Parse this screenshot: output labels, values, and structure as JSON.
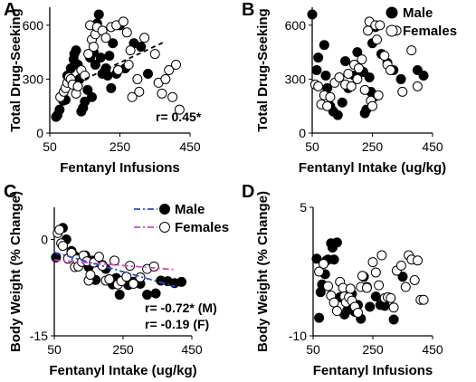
{
  "figure": {
    "panel_labels": [
      "A",
      "B",
      "C",
      "D"
    ]
  },
  "chart_data": [
    {
      "panel": "A",
      "type": "scatter",
      "xlabel": "Fentanyl Infusions",
      "ylabel": "Total Drug-Seeking",
      "xlim": [
        50,
        450
      ],
      "ylim": [
        0,
        700
      ],
      "xticks": [
        "50",
        "250",
        "450"
      ],
      "yticks": [
        "0",
        "300",
        "600"
      ],
      "annotation": "r= 0.45*",
      "trendline": {
        "style": "dashed",
        "x": [
          150,
          380
        ],
        "y": [
          300,
          510
        ],
        "color": "#000000"
      },
      "series": [
        {
          "fill": "#000000",
          "x": [
            68,
            72,
            78,
            88,
            95,
            100,
            110,
            118,
            120,
            125,
            130,
            135,
            140,
            145,
            150,
            158,
            165,
            170,
            175,
            180,
            185,
            190,
            195,
            200,
            205,
            210,
            215,
            220,
            225,
            230,
            240,
            245,
            250,
            265,
            290,
            310,
            330
          ],
          "y": [
            90,
            100,
            130,
            180,
            185,
            320,
            360,
            410,
            440,
            460,
            380,
            300,
            120,
            140,
            175,
            240,
            420,
            200,
            450,
            380,
            610,
            660,
            420,
            330,
            340,
            360,
            320,
            430,
            250,
            500,
            330,
            350,
            600,
            360,
            500,
            480,
            330
          ]
        },
        {
          "fill": "#ffffff",
          "x": [
            80,
            90,
            95,
            100,
            105,
            110,
            115,
            125,
            130,
            140,
            150,
            160,
            165,
            170,
            175,
            180,
            185,
            200,
            210,
            225,
            240,
            245,
            260,
            270,
            275,
            280,
            285,
            300,
            305,
            320,
            350,
            360,
            370,
            380,
            390,
            400,
            410,
            420
          ],
          "y": [
            200,
            230,
            250,
            280,
            310,
            300,
            270,
            220,
            260,
            350,
            320,
            440,
            600,
            520,
            480,
            550,
            590,
            570,
            530,
            590,
            600,
            350,
            620,
            560,
            380,
            460,
            200,
            300,
            230,
            530,
            440,
            280,
            220,
            300,
            350,
            200,
            380,
            130
          ]
        }
      ]
    },
    {
      "panel": "B",
      "type": "scatter",
      "xlabel": "Fentanyl Intake (ug/kg)",
      "ylabel": "Total Drug-Seeking",
      "xlim": [
        50,
        450
      ],
      "ylim": [
        0,
        700
      ],
      "xticks": [
        "50",
        "250",
        "450"
      ],
      "yticks": [
        "0",
        "300",
        "600"
      ],
      "legend_position": "top-right",
      "series": [
        {
          "name": "Male",
          "fill": "#000000",
          "x": [
            50,
            65,
            70,
            90,
            95,
            100,
            110,
            120,
            135,
            150,
            160,
            170,
            190,
            200,
            210,
            220,
            225,
            230,
            240,
            245,
            250,
            255,
            260,
            280,
            300,
            320,
            345,
            400,
            420
          ],
          "y": [
            660,
            350,
            420,
            490,
            320,
            250,
            150,
            120,
            100,
            170,
            400,
            250,
            320,
            450,
            350,
            340,
            110,
            130,
            310,
            230,
            500,
            200,
            590,
            440,
            390,
            350,
            300,
            350,
            320
          ]
        },
        {
          "name": "Females",
          "fill": "#ffffff",
          "x": [
            60,
            70,
            80,
            90,
            100,
            110,
            125,
            140,
            160,
            170,
            180,
            190,
            200,
            205,
            215,
            225,
            235,
            240,
            245,
            250,
            260,
            265,
            270,
            275,
            290,
            300,
            310,
            330,
            350,
            380,
            400
          ],
          "y": [
            270,
            260,
            160,
            210,
            150,
            200,
            280,
            310,
            270,
            330,
            260,
            380,
            300,
            360,
            410,
            240,
            570,
            620,
            180,
            150,
            600,
            520,
            210,
            600,
            430,
            380,
            350,
            570,
            230,
            460,
            260
          ]
        }
      ]
    },
    {
      "panel": "C",
      "type": "scatter",
      "xlabel": "Fentanyl Intake (ug/kg)",
      "ylabel": "Body Weight (% Change)",
      "xlim": [
        50,
        450
      ],
      "ylim": [
        -15,
        5
      ],
      "xticks": [
        "50",
        "250",
        "450"
      ],
      "yticks": [
        "-15",
        "0"
      ],
      "annotations": [
        "r= -0.72* (M)",
        "r= -0.19 (F)"
      ],
      "legend_position": "top-right",
      "trendlines": [
        {
          "name": "Male",
          "style": "dash-dot",
          "color": "#1f4fd6",
          "x": [
            50,
            400
          ],
          "y": [
            -2.0,
            -7.3
          ]
        },
        {
          "name": "Females",
          "style": "dash-dot",
          "color": "#e040c8",
          "x": [
            50,
            400
          ],
          "y": [
            -3.2,
            -4.7
          ]
        }
      ],
      "series": [
        {
          "name": "Male",
          "fill": "#000000",
          "x": [
            55,
            75,
            85,
            100,
            110,
            120,
            130,
            140,
            150,
            160,
            170,
            180,
            190,
            200,
            210,
            220,
            230,
            240,
            250,
            265,
            280,
            300,
            320,
            345,
            360,
            380,
            400,
            420
          ],
          "y": [
            -2.8,
            1.8,
            0.0,
            -1.8,
            -2.6,
            -3.3,
            -3.1,
            -2.5,
            -4.3,
            -3.3,
            -6.3,
            -3.6,
            -4.0,
            -4.6,
            -6.2,
            -7.0,
            -6.0,
            -8.6,
            -6.4,
            -7.1,
            -6.6,
            -6.9,
            -8.6,
            -8.4,
            -6.4,
            -6.5,
            -6.8,
            -6.6
          ]
        },
        {
          "name": "Females",
          "fill": "#ffffff",
          "x": [
            60,
            65,
            70,
            75,
            90,
            100,
            110,
            115,
            120,
            130,
            135,
            145,
            150,
            155,
            165,
            180,
            190,
            200,
            210,
            225,
            235,
            245,
            260,
            270,
            280,
            300,
            320,
            340
          ],
          "y": [
            1.0,
            1.5,
            -0.6,
            -1.0,
            -3.0,
            -2.1,
            -4.3,
            -3.1,
            -4.2,
            -3.5,
            -2.5,
            -3.4,
            -6.4,
            -5.5,
            -3.6,
            -2.7,
            -4.1,
            -6.4,
            -6.2,
            -3.3,
            -7.0,
            -6.5,
            -5.8,
            -4.1,
            -6.9,
            -5.9,
            -4.6,
            -4.2
          ]
        }
      ]
    },
    {
      "panel": "D",
      "type": "scatter",
      "xlabel": "Fentanyl Infusions",
      "ylabel": "Body Weight (% Change)",
      "xlim": [
        50,
        450
      ],
      "ylim": [
        -10,
        5
      ],
      "xticks": [
        "50",
        "250",
        "450"
      ],
      "yticks": [
        "-10",
        "5"
      ],
      "series": [
        {
          "fill": "#000000",
          "x": [
            62,
            70,
            75,
            80,
            90,
            95,
            100,
            110,
            115,
            120,
            130,
            140,
            150,
            155,
            165,
            175,
            180,
            190,
            200,
            210,
            220,
            230,
            240,
            260,
            275,
            290,
            320,
            350
          ],
          "y": [
            -1.0,
            -7.9,
            -4.9,
            -4.0,
            -2.8,
            -1.2,
            -1.1,
            0.8,
            0.3,
            -1.1,
            0.9,
            -5.5,
            -5.4,
            -7.5,
            -7.0,
            -6.9,
            -5.1,
            -7.2,
            -6.4,
            -8.0,
            -3.1,
            -4.3,
            -6.6,
            -5.4,
            -6.4,
            -6.5,
            -8.1,
            -3.1
          ]
        },
        {
          "fill": "#ffffff",
          "x": [
            70,
            85,
            100,
            110,
            120,
            130,
            140,
            150,
            155,
            160,
            170,
            175,
            180,
            190,
            200,
            210,
            215,
            230,
            250,
            260,
            270,
            280,
            290,
            300,
            310,
            320,
            330,
            345,
            360,
            370,
            380,
            390,
            400,
            410,
            420
          ],
          "y": [
            -2.5,
            -1.6,
            -4.2,
            -5.3,
            -6.1,
            -7.1,
            -3.7,
            -4.4,
            -5.4,
            -6.1,
            -5.5,
            -4.5,
            -5.9,
            -6.6,
            -7.3,
            -4.3,
            -3.0,
            -4.4,
            -1.4,
            -2.6,
            -4.1,
            -0.6,
            -5.6,
            -5.5,
            -5.6,
            -6.7,
            -2.4,
            -1.8,
            -4.3,
            -0.6,
            -1.1,
            -3.5,
            -1.2,
            -5.8,
            -5.8
          ]
        }
      ]
    }
  ]
}
